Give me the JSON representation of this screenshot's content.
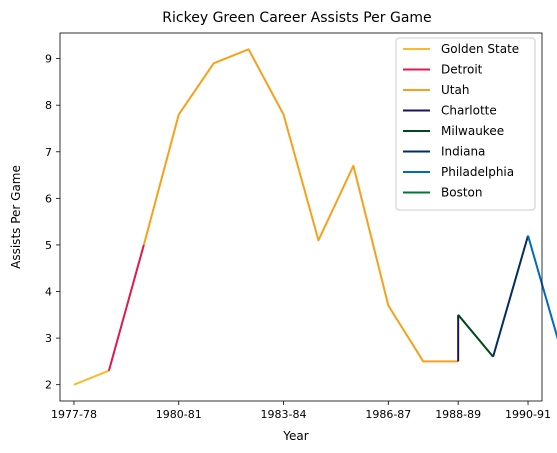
{
  "chart_data": {
    "type": "line",
    "title": "Rickey Green Career Assists Per Game",
    "xlabel": "Year",
    "ylabel": "Assists Per Game",
    "x_tick_labels": [
      "1977-78",
      "1980-81",
      "1983-84",
      "1986-87",
      "1988-89",
      "1990-91"
    ],
    "x_tick_positions": [
      0,
      3,
      6,
      9,
      11,
      13
    ],
    "y_ticks": [
      2,
      3,
      4,
      5,
      6,
      7,
      8,
      9
    ],
    "xlim": [
      -0.4,
      13.4
    ],
    "ylim": [
      1.65,
      9.55
    ],
    "grid": false,
    "legend_position": "top-right",
    "series": [
      {
        "name": "Golden State",
        "color": "#FDB927",
        "x": [
          0,
          1
        ],
        "y": [
          2.0,
          2.3
        ]
      },
      {
        "name": "Detroit",
        "color": "#E0184B",
        "x": [
          1,
          2
        ],
        "y": [
          2.3,
          5.0
        ]
      },
      {
        "name": "Utah",
        "color": "#F9A01B",
        "x": [
          2,
          3,
          4,
          5,
          6,
          7,
          8,
          9,
          10,
          11
        ],
        "y": [
          5.0,
          7.8,
          8.9,
          9.2,
          7.8,
          5.1,
          6.7,
          3.7,
          2.5,
          2.5
        ]
      },
      {
        "name": "Charlotte",
        "color": "#1D1160",
        "x": [
          11,
          11
        ],
        "y": [
          2.5,
          3.5
        ]
      },
      {
        "name": "Milwaukee",
        "color": "#00471B",
        "x": [
          11,
          12
        ],
        "y": [
          3.5,
          2.6
        ]
      },
      {
        "name": "Indiana",
        "color": "#002D62",
        "x": [
          12,
          13
        ],
        "y": [
          2.6,
          5.2
        ]
      },
      {
        "name": "Philadelphia",
        "color": "#006BB6",
        "x": [
          13,
          14
        ],
        "y": [
          5.2,
          2.6
        ]
      },
      {
        "name": "Boston",
        "color": "#007A33",
        "x": [],
        "y": []
      }
    ]
  }
}
